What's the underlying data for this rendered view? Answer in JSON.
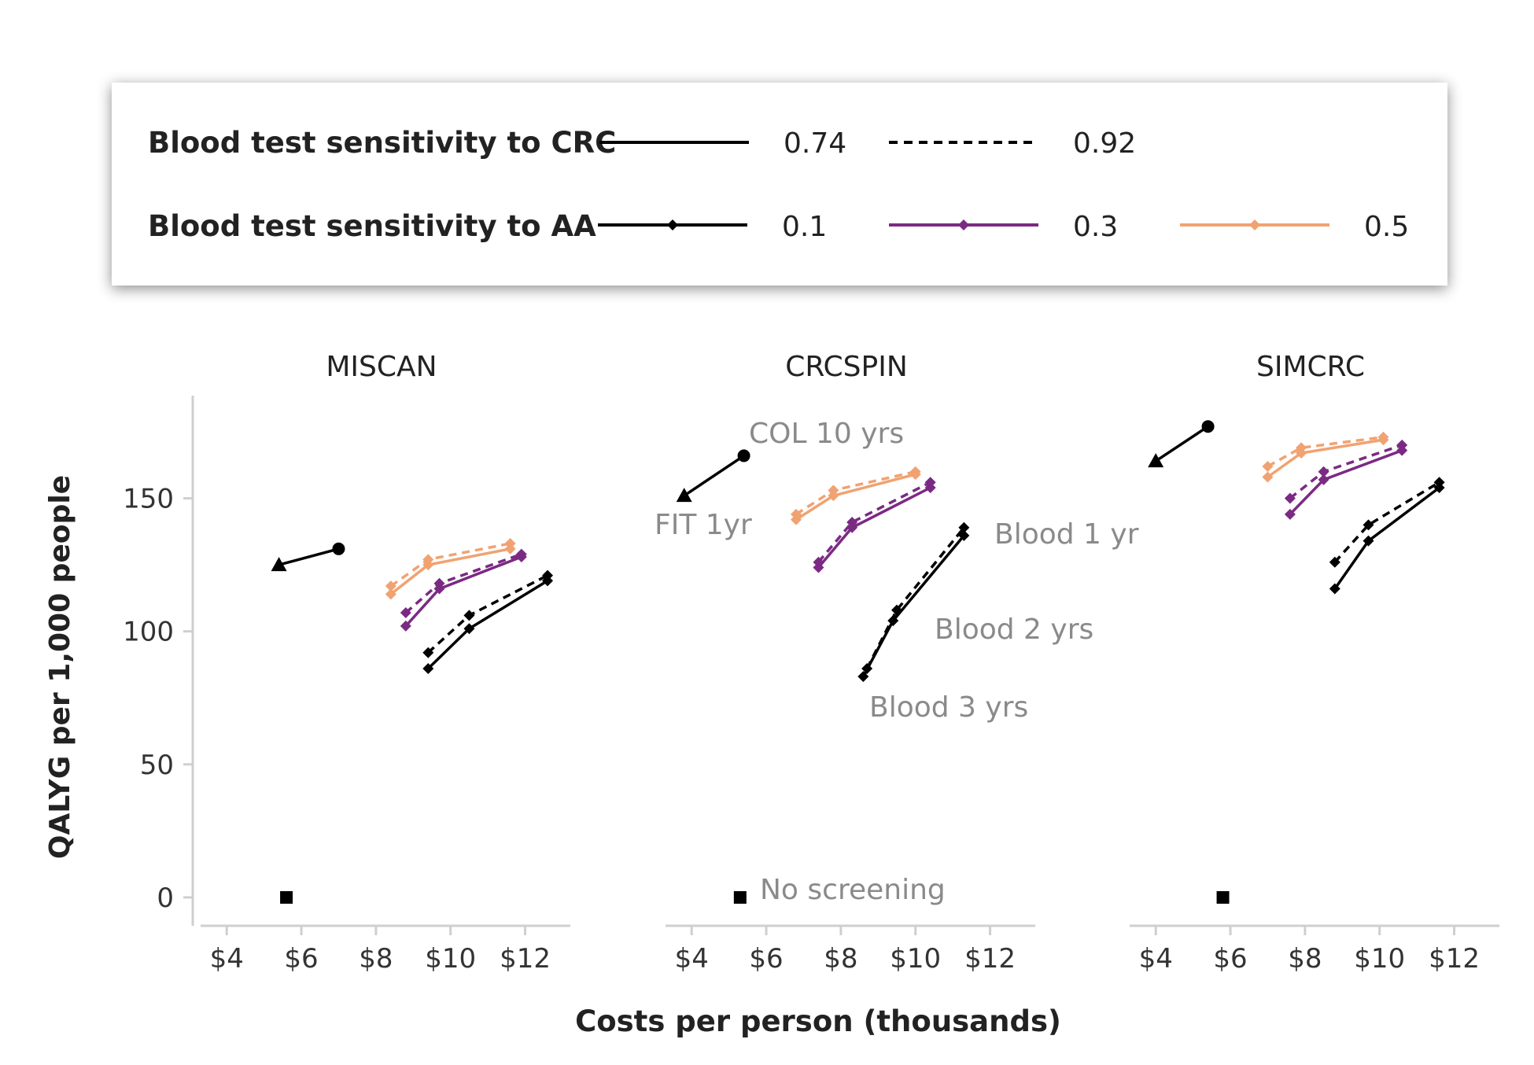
{
  "legend": {
    "crc_title": "Blood test sensitivity to CRC",
    "aa_title": "Blood test sensitivity to AA",
    "crc_items": [
      {
        "label": "0.74",
        "dash": "solid"
      },
      {
        "label": "0.92",
        "dash": "dashed"
      }
    ],
    "aa_items": [
      {
        "label": "0.1",
        "color": "#000000"
      },
      {
        "label": "0.3",
        "color": "#7b2a83"
      },
      {
        "label": "0.5",
        "color": "#f1a271"
      }
    ]
  },
  "axes": {
    "ylabel": "QALYG per 1,000 people",
    "xlabel": "Costs per person (thousands)",
    "yticks": [
      0,
      50,
      100,
      150
    ],
    "ytick_labels": [
      "0",
      "50",
      "100",
      "150"
    ],
    "xticks": [
      4,
      6,
      8,
      10,
      12
    ],
    "xtick_labels": [
      "$4",
      "$6",
      "$8",
      "$10",
      "$12"
    ]
  },
  "chart_data": [
    {
      "type": "line",
      "title": "MISCAN",
      "xlim": [
        3.3,
        13.0
      ],
      "ylim": [
        -8,
        188
      ],
      "annotations": [],
      "no_screening": {
        "x": 5.6,
        "y": 0
      },
      "colonoscopy_fit": {
        "col": {
          "x": 7.0,
          "y": 131
        },
        "fit": {
          "x": 5.4,
          "y": 125
        }
      },
      "series": [
        {
          "name": "AA 0.1 / CRC 0.74",
          "aa": "0.1",
          "crc": "0.74",
          "points": [
            [
              9.4,
              86
            ],
            [
              10.5,
              101
            ],
            [
              12.6,
              119
            ]
          ]
        },
        {
          "name": "AA 0.1 / CRC 0.92",
          "aa": "0.1",
          "crc": "0.92",
          "points": [
            [
              9.4,
              92
            ],
            [
              10.5,
              106
            ],
            [
              12.6,
              121
            ]
          ]
        },
        {
          "name": "AA 0.3 / CRC 0.74",
          "aa": "0.3",
          "crc": "0.74",
          "points": [
            [
              8.8,
              102
            ],
            [
              9.7,
              116
            ],
            [
              11.9,
              128
            ]
          ]
        },
        {
          "name": "AA 0.3 / CRC 0.92",
          "aa": "0.3",
          "crc": "0.92",
          "points": [
            [
              8.8,
              107
            ],
            [
              9.7,
              118
            ],
            [
              11.9,
              129
            ]
          ]
        },
        {
          "name": "AA 0.5 / CRC 0.74",
          "aa": "0.5",
          "crc": "0.74",
          "points": [
            [
              8.4,
              114
            ],
            [
              9.4,
              125
            ],
            [
              11.6,
              131
            ]
          ]
        },
        {
          "name": "AA 0.5 / CRC 0.92",
          "aa": "0.5",
          "crc": "0.92",
          "points": [
            [
              8.4,
              117
            ],
            [
              9.4,
              127
            ],
            [
              11.6,
              133
            ]
          ]
        }
      ]
    },
    {
      "type": "line",
      "title": "CRCSPIN",
      "xlim": [
        3.3,
        13.0
      ],
      "ylim": [
        -8,
        188
      ],
      "annotations": [
        "COL 10 yrs",
        "FIT 1yr",
        "Blood 1 yr",
        "Blood 2 yrs",
        "Blood 3 yrs",
        "No screening"
      ],
      "no_screening": {
        "x": 5.3,
        "y": 0
      },
      "colonoscopy_fit": {
        "col": {
          "x": 5.4,
          "y": 166
        },
        "fit": {
          "x": 3.8,
          "y": 151
        }
      },
      "series": [
        {
          "name": "AA 0.1 / CRC 0.74",
          "aa": "0.1",
          "crc": "0.74",
          "points": [
            [
              8.6,
              83
            ],
            [
              9.4,
              104
            ],
            [
              11.3,
              136
            ]
          ]
        },
        {
          "name": "AA 0.1 / CRC 0.92",
          "aa": "0.1",
          "crc": "0.92",
          "points": [
            [
              8.7,
              86
            ],
            [
              9.5,
              108
            ],
            [
              11.3,
              139
            ]
          ]
        },
        {
          "name": "AA 0.3 / CRC 0.74",
          "aa": "0.3",
          "crc": "0.74",
          "points": [
            [
              7.4,
              124
            ],
            [
              8.3,
              139
            ],
            [
              10.4,
              154
            ]
          ]
        },
        {
          "name": "AA 0.3 / CRC 0.92",
          "aa": "0.3",
          "crc": "0.92",
          "points": [
            [
              7.4,
              126
            ],
            [
              8.3,
              141
            ],
            [
              10.4,
              156
            ]
          ]
        },
        {
          "name": "AA 0.5 / CRC 0.74",
          "aa": "0.5",
          "crc": "0.74",
          "points": [
            [
              6.8,
              142
            ],
            [
              7.8,
              151
            ],
            [
              10.0,
              159
            ]
          ]
        },
        {
          "name": "AA 0.5 / CRC 0.92",
          "aa": "0.5",
          "crc": "0.92",
          "points": [
            [
              6.8,
              144
            ],
            [
              7.8,
              153
            ],
            [
              10.0,
              160
            ]
          ]
        }
      ]
    },
    {
      "type": "line",
      "title": "SIMCRC",
      "xlim": [
        3.3,
        13.0
      ],
      "ylim": [
        -8,
        188
      ],
      "annotations": [],
      "no_screening": {
        "x": 5.8,
        "y": 0
      },
      "colonoscopy_fit": {
        "col": {
          "x": 5.4,
          "y": 177
        },
        "fit": {
          "x": 4.0,
          "y": 164
        }
      },
      "series": [
        {
          "name": "AA 0.1 / CRC 0.74",
          "aa": "0.1",
          "crc": "0.74",
          "points": [
            [
              8.8,
              116
            ],
            [
              9.7,
              134
            ],
            [
              11.6,
              154
            ]
          ]
        },
        {
          "name": "AA 0.1 / CRC 0.92",
          "aa": "0.1",
          "crc": "0.92",
          "points": [
            [
              8.8,
              126
            ],
            [
              9.7,
              140
            ],
            [
              11.6,
              156
            ]
          ]
        },
        {
          "name": "AA 0.3 / CRC 0.74",
          "aa": "0.3",
          "crc": "0.74",
          "points": [
            [
              7.6,
              144
            ],
            [
              8.5,
              157
            ],
            [
              10.6,
              168
            ]
          ]
        },
        {
          "name": "AA 0.3 / CRC 0.92",
          "aa": "0.3",
          "crc": "0.92",
          "points": [
            [
              7.6,
              150
            ],
            [
              8.5,
              160
            ],
            [
              10.6,
              170
            ]
          ]
        },
        {
          "name": "AA 0.5 / CRC 0.74",
          "aa": "0.5",
          "crc": "0.74",
          "points": [
            [
              7.0,
              158
            ],
            [
              7.9,
              167
            ],
            [
              10.1,
              172
            ]
          ]
        },
        {
          "name": "AA 0.5 / CRC 0.92",
          "aa": "0.5",
          "crc": "0.92",
          "points": [
            [
              7.0,
              162
            ],
            [
              7.9,
              169
            ],
            [
              10.1,
              173
            ]
          ]
        }
      ]
    }
  ]
}
